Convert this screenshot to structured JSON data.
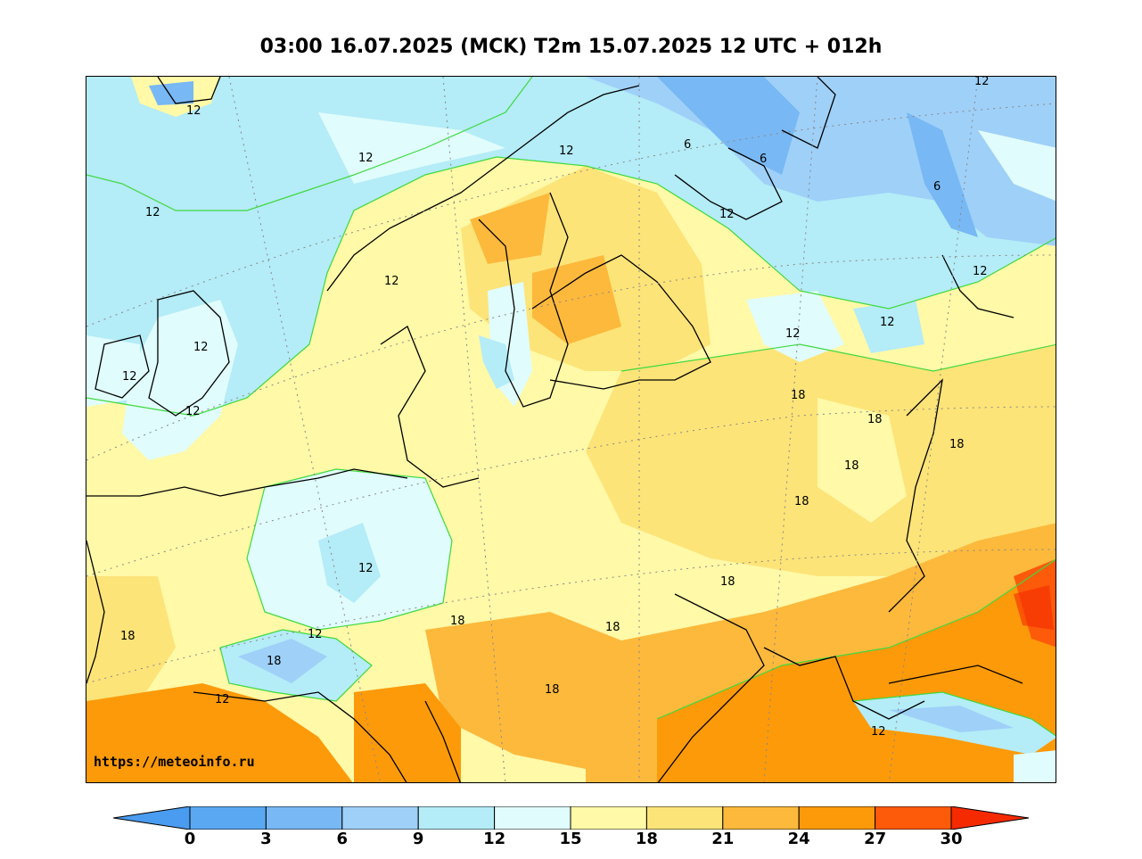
{
  "title": "03:00 16.07.2025 (MCK) T2m 15.07.2025 12 UTC + 012h",
  "source_url": "https://meteoinfo.ru",
  "contour_labels": [
    "12",
    "12",
    "12",
    "12",
    "12",
    "12",
    "12",
    "12",
    "12",
    "12",
    "12",
    "12",
    "12",
    "12",
    "12",
    "12",
    "12",
    "6",
    "6",
    "6",
    "18",
    "18",
    "18",
    "18",
    "18",
    "18",
    "18",
    "18",
    "18",
    "18",
    "18"
  ],
  "legend": {
    "ticks": [
      "0",
      "3",
      "6",
      "9",
      "12",
      "15",
      "18",
      "21",
      "24",
      "27",
      "30"
    ],
    "colors": [
      "#4a9cf0",
      "#5aa8f2",
      "#78b8f4",
      "#9fd0f8",
      "#b4ecf7",
      "#e0fcfc",
      "#fff9a8",
      "#fde478",
      "#fdb93c",
      "#fd9a0a",
      "#fd5a0a",
      "#f52a00"
    ]
  }
}
